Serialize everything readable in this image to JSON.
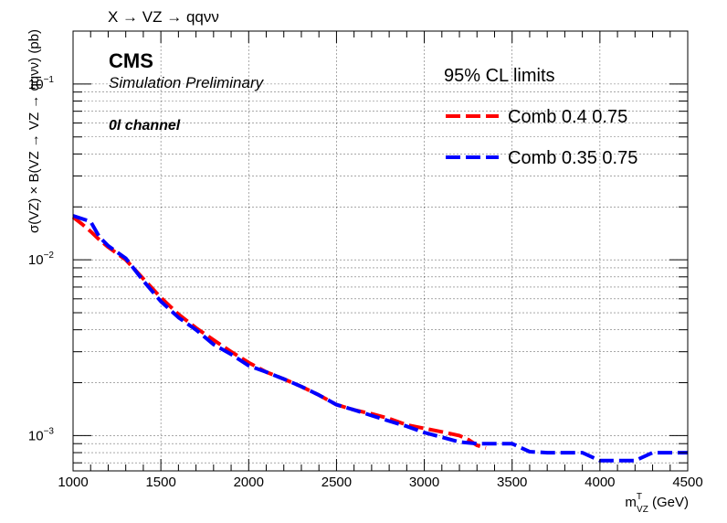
{
  "chart_data": {
    "type": "line",
    "title": "X → VZ → qqνν",
    "xlabel": "m",
    "xlabel_sup": "T",
    "xlabel_sub": "VZ",
    "xlabel_unit": " (GeV)",
    "ylabel": "σ(VZ) × B(VZ → VZ → qqνν) (pb)",
    "xlim": [
      1000,
      4500
    ],
    "ylim": [
      0.00063,
      0.2
    ],
    "yscale": "log",
    "grid": true,
    "x_ticks": [
      "1000",
      "1500",
      "2000",
      "2500",
      "3000",
      "3500",
      "4000",
      "4500"
    ],
    "y_ticks": [
      {
        "base": "10",
        "exp": "−1"
      },
      {
        "base": "10",
        "exp": "−2"
      },
      {
        "base": "10",
        "exp": "−3"
      }
    ],
    "annotations": {
      "experiment": "CMS",
      "status": "Simulation Preliminary",
      "channel": "0l channel"
    },
    "legend_title": "95% CL limits",
    "legend_position": "top-right",
    "series": [
      {
        "name": "Comb 0.4 0.75",
        "color": "#ff0000",
        "x": [
          1000,
          1050,
          1100,
          1150,
          1200,
          1300,
          1400,
          1500,
          1600,
          1700,
          1800,
          1900,
          2000,
          2100,
          2200,
          2300,
          2400,
          2500,
          2600,
          2700,
          2800,
          2900,
          3000,
          3100,
          3200,
          3250,
          3300,
          3350
        ],
        "y": [
          0.0175,
          0.016,
          0.0145,
          0.013,
          0.0118,
          0.01,
          0.0078,
          0.0061,
          0.0049,
          0.0041,
          0.0035,
          0.003,
          0.0026,
          0.0023,
          0.0021,
          0.0019,
          0.0017,
          0.0015,
          0.0014,
          0.00133,
          0.00125,
          0.00115,
          0.0011,
          0.00105,
          0.001,
          0.00095,
          0.00088,
          0.00085
        ]
      },
      {
        "name": "Comb 0.35 0.75",
        "color": "#0000ff",
        "x": [
          1000,
          1100,
          1150,
          1200,
          1300,
          1400,
          1500,
          1600,
          1700,
          1800,
          1900,
          2000,
          2100,
          2200,
          2300,
          2400,
          2500,
          2600,
          2700,
          2800,
          2900,
          3000,
          3100,
          3200,
          3300,
          3400,
          3500,
          3600,
          3700,
          3800,
          3900,
          4000,
          4100,
          4200,
          4300,
          4400,
          4500
        ],
        "y": [
          0.0178,
          0.0165,
          0.0135,
          0.012,
          0.0102,
          0.0076,
          0.0058,
          0.0047,
          0.004,
          0.0033,
          0.0029,
          0.0025,
          0.0023,
          0.0021,
          0.0019,
          0.0017,
          0.0015,
          0.0014,
          0.0013,
          0.00121,
          0.00113,
          0.00104,
          0.00098,
          0.00092,
          0.0009,
          0.0009,
          0.0009,
          0.00081,
          0.0008,
          0.0008,
          0.0008,
          0.00072,
          0.00072,
          0.00072,
          0.0008,
          0.0008,
          0.0008
        ]
      }
    ]
  }
}
